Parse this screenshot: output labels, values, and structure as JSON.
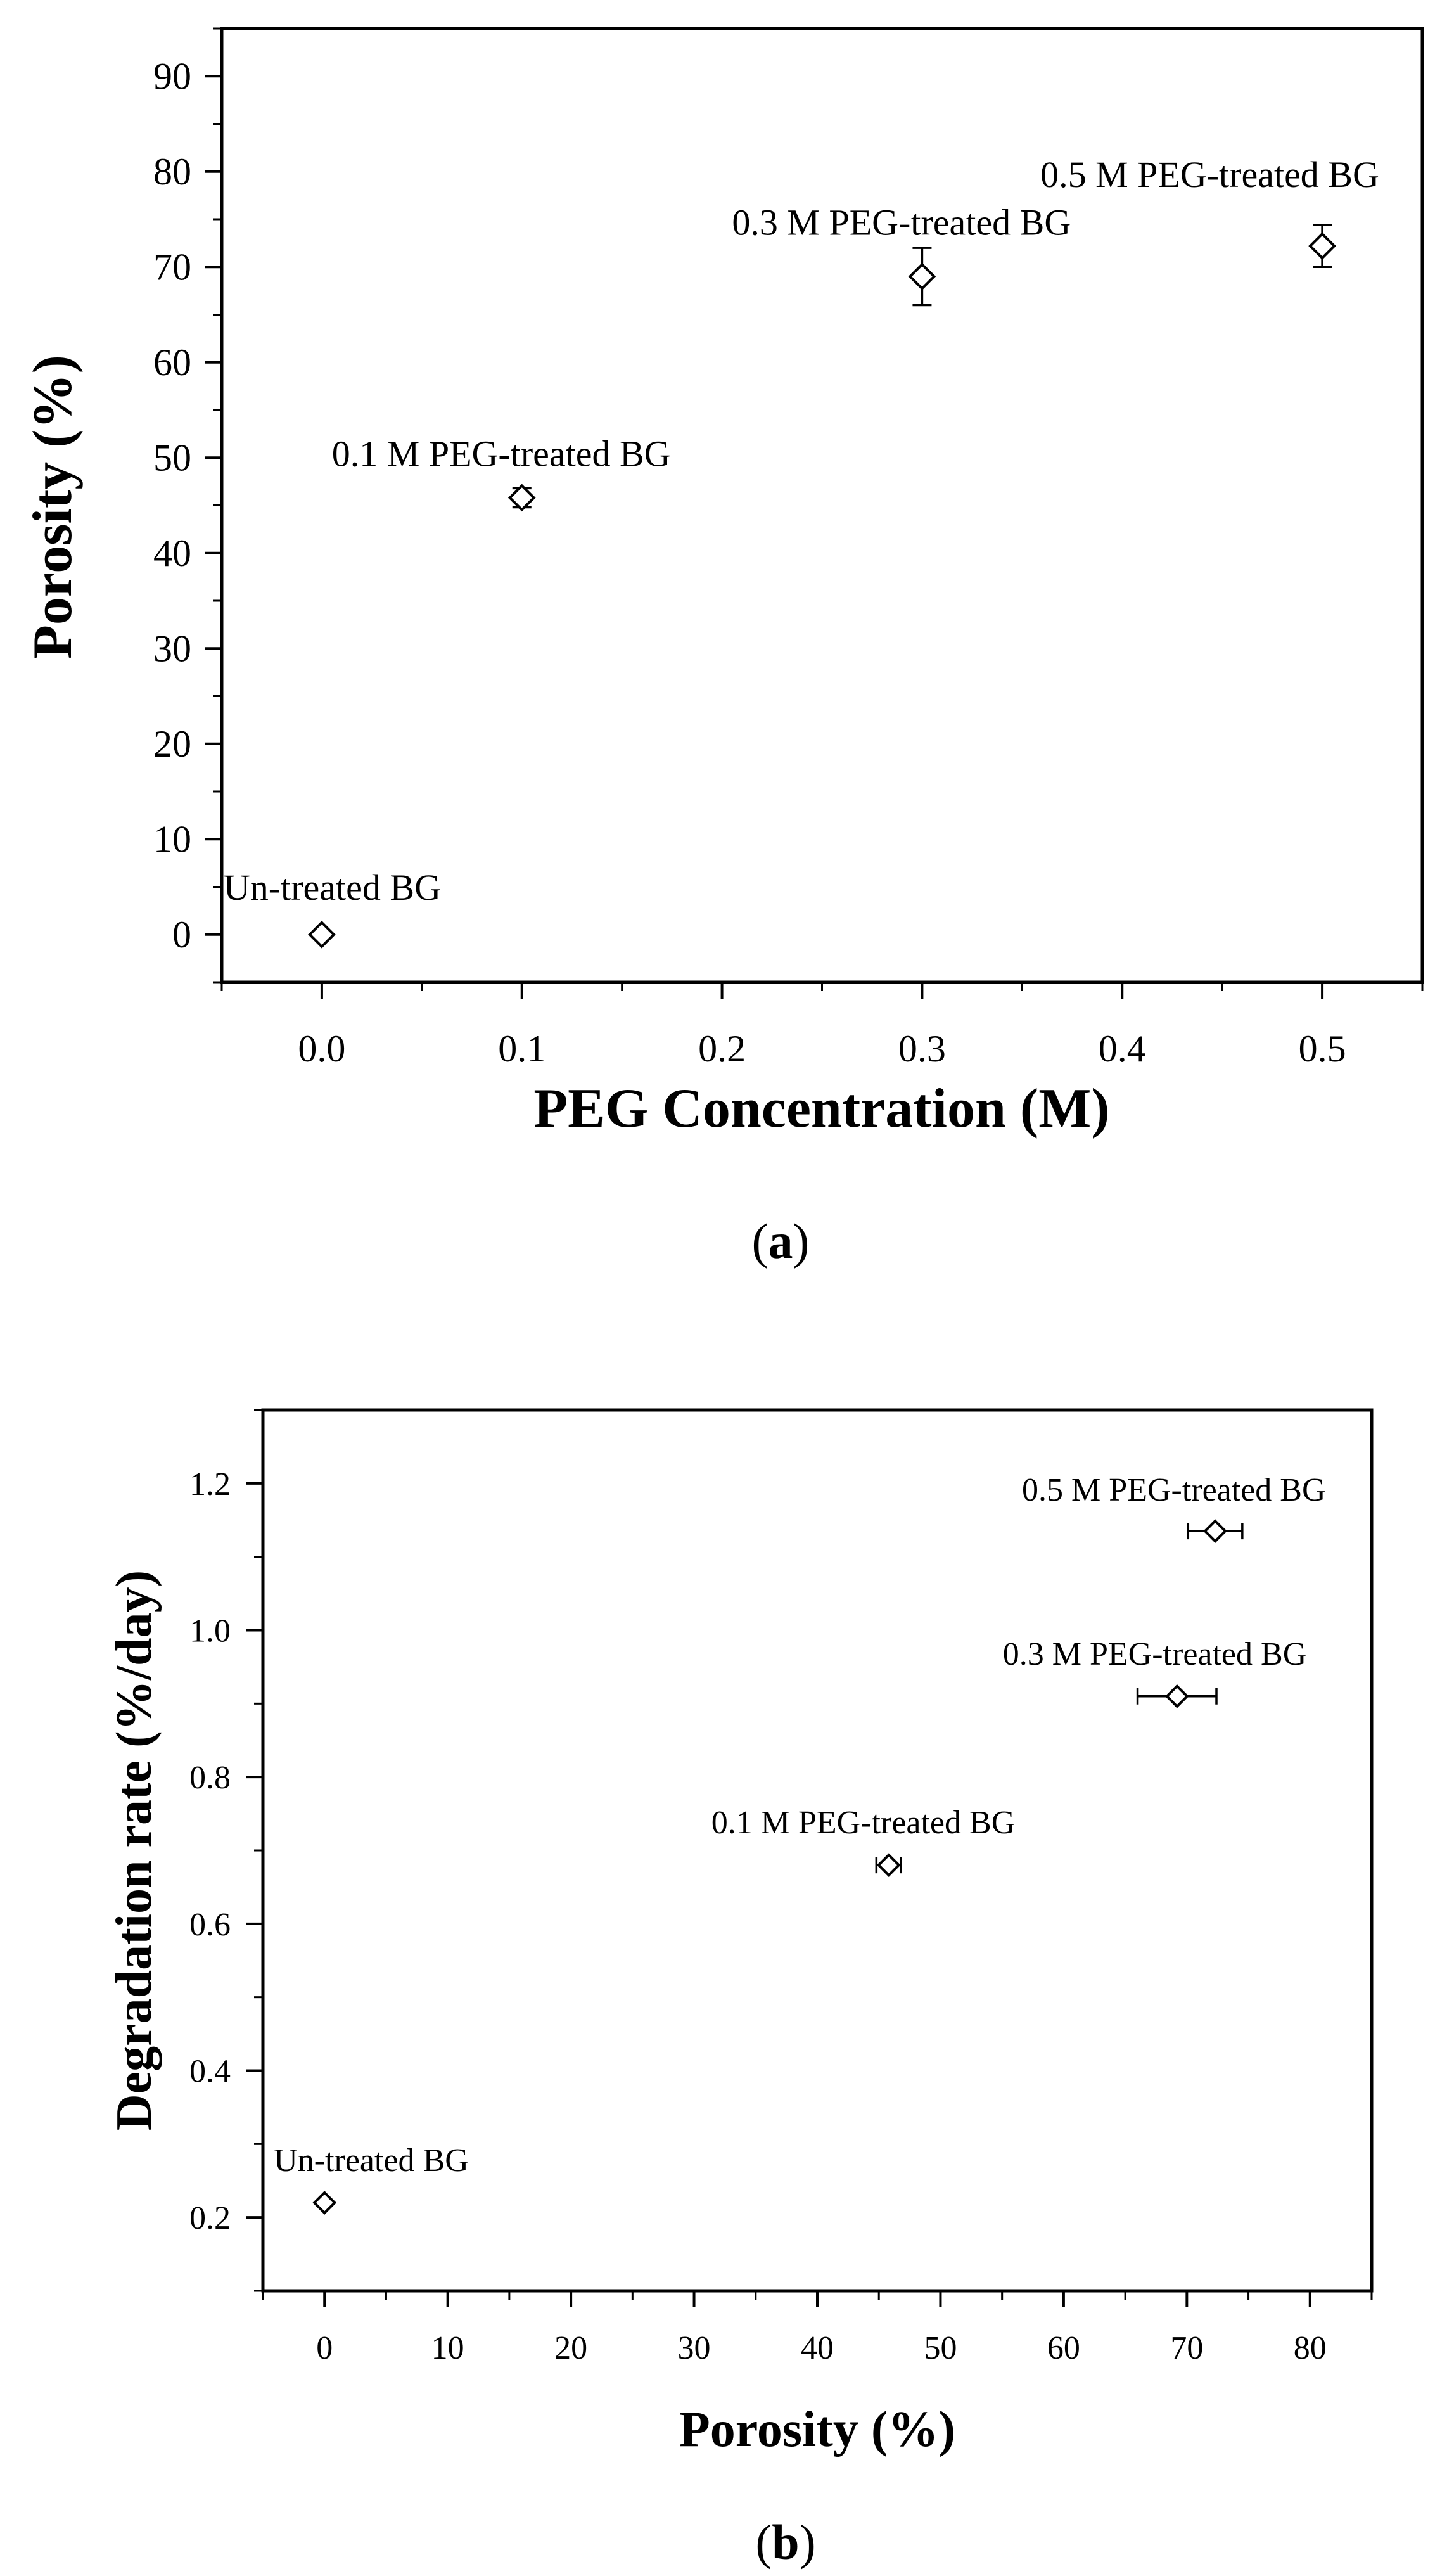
{
  "chart_data": [
    {
      "type": "scatter",
      "panel": "a",
      "caption_open": "(",
      "caption_letter": "a",
      "caption_close": ")",
      "xlabel": "PEG Concentration (M)",
      "ylabel": "Porosity (%)",
      "xlim": [
        -0.05,
        0.55
      ],
      "ylim": [
        -5,
        95
      ],
      "xticks": [
        0.0,
        0.1,
        0.2,
        0.3,
        0.4,
        0.5
      ],
      "xtick_labels": [
        "0.0",
        "0.1",
        "0.2",
        "0.3",
        "0.4",
        "0.5"
      ],
      "yticks": [
        0,
        10,
        20,
        30,
        40,
        50,
        60,
        70,
        80,
        90
      ],
      "ytick_labels": [
        "0",
        "10",
        "20",
        "30",
        "40",
        "50",
        "60",
        "70",
        "80",
        "90"
      ],
      "marker": "open-diamond",
      "points": [
        {
          "label": "Un-treated BG",
          "x": 0.0,
          "y": 0.0,
          "y_err": 0
        },
        {
          "label": "0.1 M PEG-treated BG",
          "x": 0.1,
          "y": 45.8,
          "y_err": 1.0
        },
        {
          "label": "0.3 M PEG-treated BG",
          "x": 0.3,
          "y": 69.0,
          "y_err": 3.0
        },
        {
          "label": "0.5 M PEG-treated BG",
          "x": 0.5,
          "y": 72.2,
          "y_err": 2.2
        }
      ]
    },
    {
      "type": "scatter",
      "panel": "b",
      "caption_open": "(",
      "caption_letter": "b",
      "caption_close": ")",
      "xlabel": "Porosity (%)",
      "ylabel": "Degradation rate (%/day)",
      "xlim": [
        -5,
        85
      ],
      "ylim": [
        0.1,
        1.3
      ],
      "xticks": [
        0,
        10,
        20,
        30,
        40,
        50,
        60,
        70,
        80
      ],
      "xtick_labels": [
        "0",
        "10",
        "20",
        "30",
        "40",
        "50",
        "60",
        "70",
        "80"
      ],
      "yticks": [
        0.2,
        0.4,
        0.6,
        0.8,
        1.0,
        1.2
      ],
      "ytick_labels": [
        "0.2",
        "0.4",
        "0.6",
        "0.8",
        "1.0",
        "1.2"
      ],
      "marker": "open-diamond",
      "points": [
        {
          "label": "Un-treated BG",
          "x": 0.0,
          "y": 0.22,
          "x_err": 0
        },
        {
          "label": "0.1 M PEG-treated BG",
          "x": 45.8,
          "y": 0.68,
          "x_err": 1.0
        },
        {
          "label": "0.3 M PEG-treated BG",
          "x": 69.2,
          "y": 0.91,
          "x_err": 3.2
        },
        {
          "label": "0.5 M PEG-treated BG",
          "x": 72.3,
          "y": 1.135,
          "x_err": 2.2
        }
      ]
    }
  ]
}
